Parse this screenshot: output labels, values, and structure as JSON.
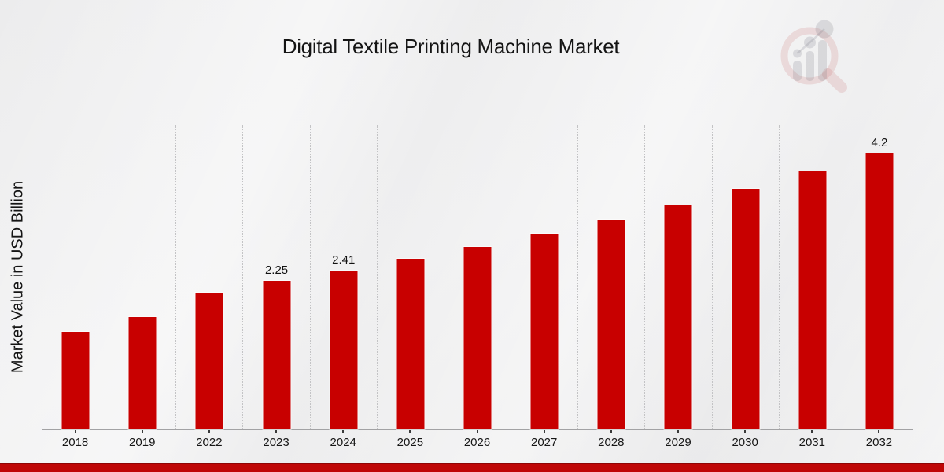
{
  "page": {
    "title": "Digital Textile Printing Machine Market"
  },
  "chart_data": {
    "type": "bar",
    "title": "Digital Textile Printing Machine Market",
    "xlabel": "",
    "ylabel": "Market Value in USD Billion",
    "categories": [
      "2018",
      "2019",
      "2022",
      "2023",
      "2024",
      "2025",
      "2026",
      "2027",
      "2028",
      "2029",
      "2030",
      "2031",
      "2032"
    ],
    "values": [
      1.48,
      1.7,
      2.07,
      2.25,
      2.41,
      2.59,
      2.77,
      2.97,
      3.18,
      3.41,
      3.66,
      3.92,
      4.2
    ],
    "point_labels": [
      "",
      "",
      "",
      "2.25",
      "2.41",
      "",
      "",
      "",
      "",
      "",
      "",
      "",
      "4.2"
    ],
    "ylim": [
      0,
      4.63
    ],
    "legend": "none",
    "grid": "vertical dotted lines at category boundaries, no horizontal gridlines, no y tick labels",
    "colors": {
      "bar": "#c80000",
      "accent_band_top": "#8e0505",
      "accent_band": "#bf0707",
      "background": "#ededee",
      "gridline": "#c3c3c5",
      "axis_line": "#a2a2a4",
      "text": "#141414"
    }
  },
  "watermark": {
    "name": "market-research-magnifier-logo",
    "description": "faint magnifying glass with rising bar chart",
    "ring_color": "rgba(190,90,90,0.16)",
    "bars_color": "rgba(120,120,128,0.20)"
  }
}
